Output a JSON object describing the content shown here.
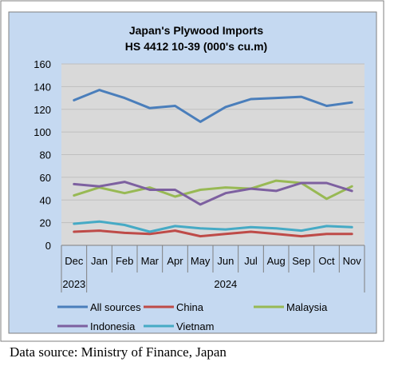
{
  "chart_data": {
    "type": "line",
    "title_line1": "Japan's Plywood Imports",
    "title_line2": "HS 4412 10-39  (000's cu.m)",
    "categories": [
      "Dec",
      "Jan",
      "Feb",
      "Mar",
      "Apr",
      "May",
      "Jun",
      "Jul",
      "Aug",
      "Sep",
      "Oct",
      "Nov"
    ],
    "year_labels": [
      "2023",
      "2024"
    ],
    "ylim": [
      0,
      160
    ],
    "yticks": [
      0,
      20,
      40,
      60,
      80,
      100,
      120,
      140,
      160
    ],
    "grid": true,
    "legend_position": "bottom",
    "series": [
      {
        "name": "All sources",
        "color": "#4a7ebb",
        "values": [
          128,
          137,
          130,
          121,
          123,
          109,
          122,
          129,
          130,
          131,
          123,
          126
        ]
      },
      {
        "name": "China",
        "color": "#be4b48",
        "values": [
          12,
          13,
          11,
          10,
          13,
          8,
          10,
          12,
          10,
          8,
          10,
          10
        ]
      },
      {
        "name": "Malaysia",
        "color": "#98b954",
        "values": [
          44,
          51,
          46,
          51,
          43,
          49,
          51,
          50,
          57,
          55,
          41,
          52
        ]
      },
      {
        "name": "Indonesia",
        "color": "#7d60a0",
        "values": [
          54,
          52,
          56,
          49,
          49,
          36,
          46,
          50,
          48,
          55,
          55,
          48
        ]
      },
      {
        "name": "Vietnam",
        "color": "#46aac5",
        "values": [
          19,
          21,
          18,
          12,
          17,
          15,
          14,
          16,
          15,
          13,
          17,
          16
        ]
      }
    ]
  },
  "source_text": "Data source: Ministry of Finance, Japan"
}
